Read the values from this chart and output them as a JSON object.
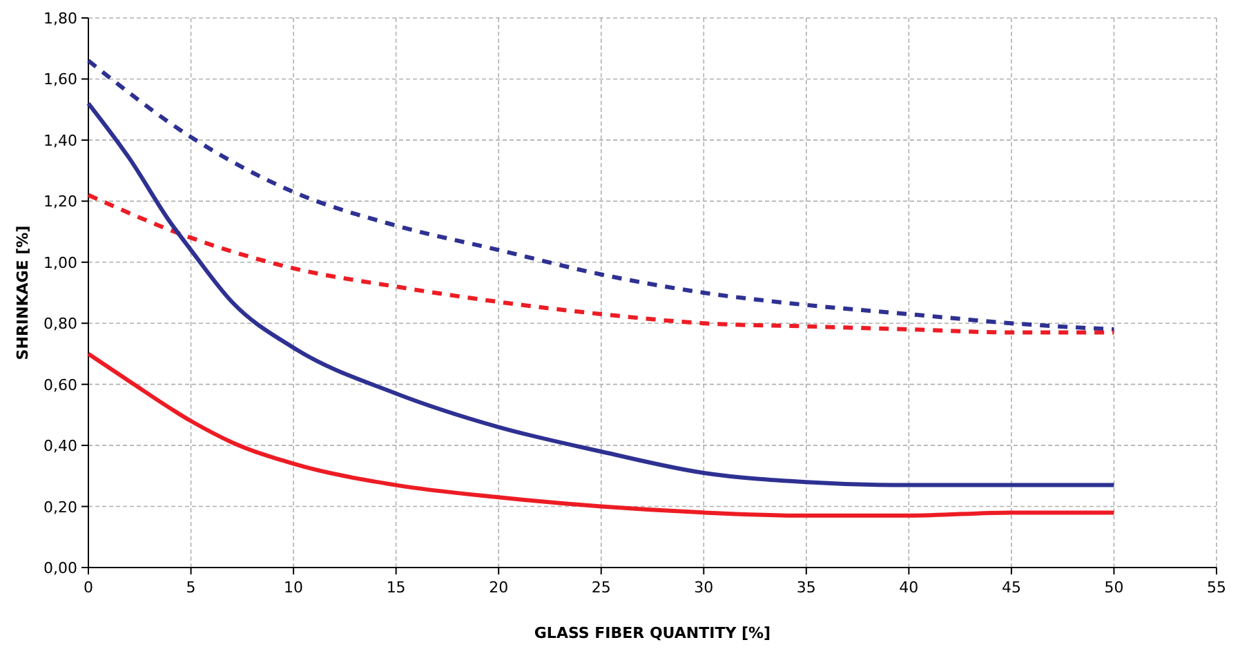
{
  "chart_data": {
    "type": "line",
    "xlabel": "GLASS FIBER QUANTITY [%]",
    "ylabel": "SHRINKAGE [%]",
    "xlim": [
      0,
      55
    ],
    "xticks": [
      0,
      5,
      10,
      15,
      20,
      25,
      30,
      35,
      40,
      45,
      50,
      55
    ],
    "ylim": [
      0,
      1.8
    ],
    "yticks": [
      {
        "value": 0,
        "label": "0,00"
      },
      {
        "value": 0.2,
        "label": "0,20"
      },
      {
        "value": 0.4,
        "label": "0,40"
      },
      {
        "value": 0.6,
        "label": "0,60"
      },
      {
        "value": 0.8,
        "label": "0,80"
      },
      {
        "value": 1.0,
        "label": "1,00"
      },
      {
        "value": 1.2,
        "label": "1,20"
      },
      {
        "value": 1.4,
        "label": "1,40"
      },
      {
        "value": 1.6,
        "label": "1,60"
      },
      {
        "value": 1.8,
        "label": "1,80"
      }
    ],
    "grid": true,
    "marker": "none",
    "series": [
      {
        "color": "#2e3192",
        "line_style": "dashed",
        "x": [
          0,
          5,
          10,
          15,
          20,
          25,
          30,
          35,
          40,
          45,
          50
        ],
        "values": [
          1.66,
          1.41,
          1.23,
          1.12,
          1.04,
          0.96,
          0.9,
          0.86,
          0.83,
          0.8,
          0.78
        ]
      },
      {
        "color": "#ed1c24",
        "line_style": "dashed",
        "x": [
          0,
          5,
          10,
          15,
          20,
          25,
          30,
          35,
          40,
          45,
          50
        ],
        "values": [
          1.22,
          1.08,
          0.98,
          0.92,
          0.87,
          0.83,
          0.8,
          0.79,
          0.78,
          0.77,
          0.77
        ]
      },
      {
        "color": "#2e3192",
        "line_style": "solid",
        "x": [
          0,
          2,
          4,
          5,
          7,
          10,
          15,
          20,
          25,
          30,
          35,
          40,
          45,
          50
        ],
        "values": [
          1.52,
          1.34,
          1.13,
          1.04,
          0.87,
          0.72,
          0.57,
          0.46,
          0.38,
          0.31,
          0.28,
          0.27,
          0.27,
          0.27
        ]
      },
      {
        "color": "#ed1c24",
        "line_style": "solid",
        "x": [
          0,
          2,
          5,
          7,
          10,
          15,
          20,
          25,
          30,
          35,
          40,
          45,
          50
        ],
        "values": [
          0.7,
          0.61,
          0.48,
          0.41,
          0.34,
          0.27,
          0.23,
          0.2,
          0.18,
          0.17,
          0.17,
          0.18,
          0.18
        ]
      }
    ]
  }
}
